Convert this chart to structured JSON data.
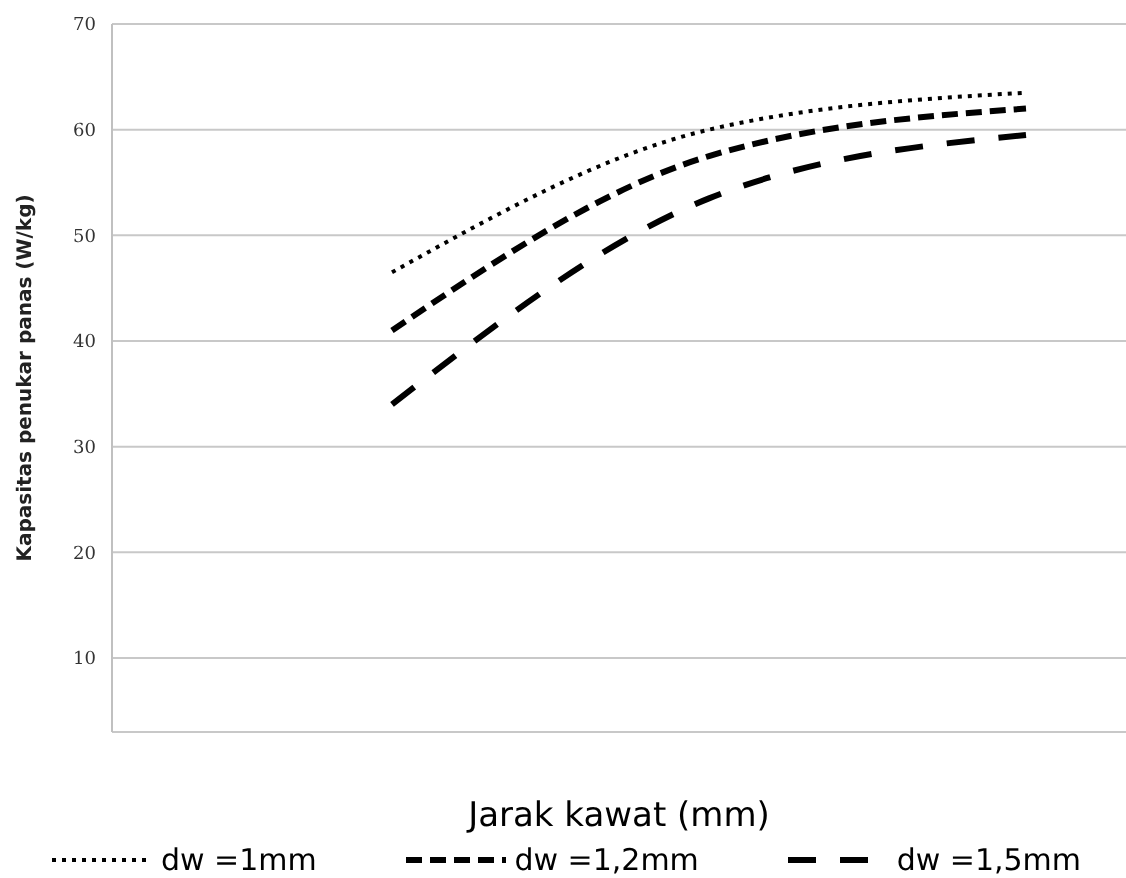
{
  "chart_data": {
    "type": "line",
    "xlabel": "Jarak kawat (mm)",
    "ylabel": "Kapasitas penukar panas (W/kg)",
    "categories": [
      null,
      null,
      null
    ],
    "ylim": [
      3,
      70
    ],
    "yticks": [
      10,
      20,
      30,
      40,
      50,
      60,
      70
    ],
    "grid": "y",
    "legend": "bottom",
    "marker": "none",
    "series": [
      {
        "name": "dw =1mm",
        "color": "#000000",
        "line_style": "dotted",
        "values": [
          46.5,
          60,
          63.5
        ]
      },
      {
        "name": "dw =1,2mm",
        "color": "#000000",
        "line_style": "dashed",
        "values": [
          41,
          57.5,
          62
        ]
      },
      {
        "name": "dw =1,5mm",
        "color": "#000000",
        "line_style": "longdash",
        "values": [
          34,
          53.5,
          59.5
        ]
      }
    ]
  }
}
